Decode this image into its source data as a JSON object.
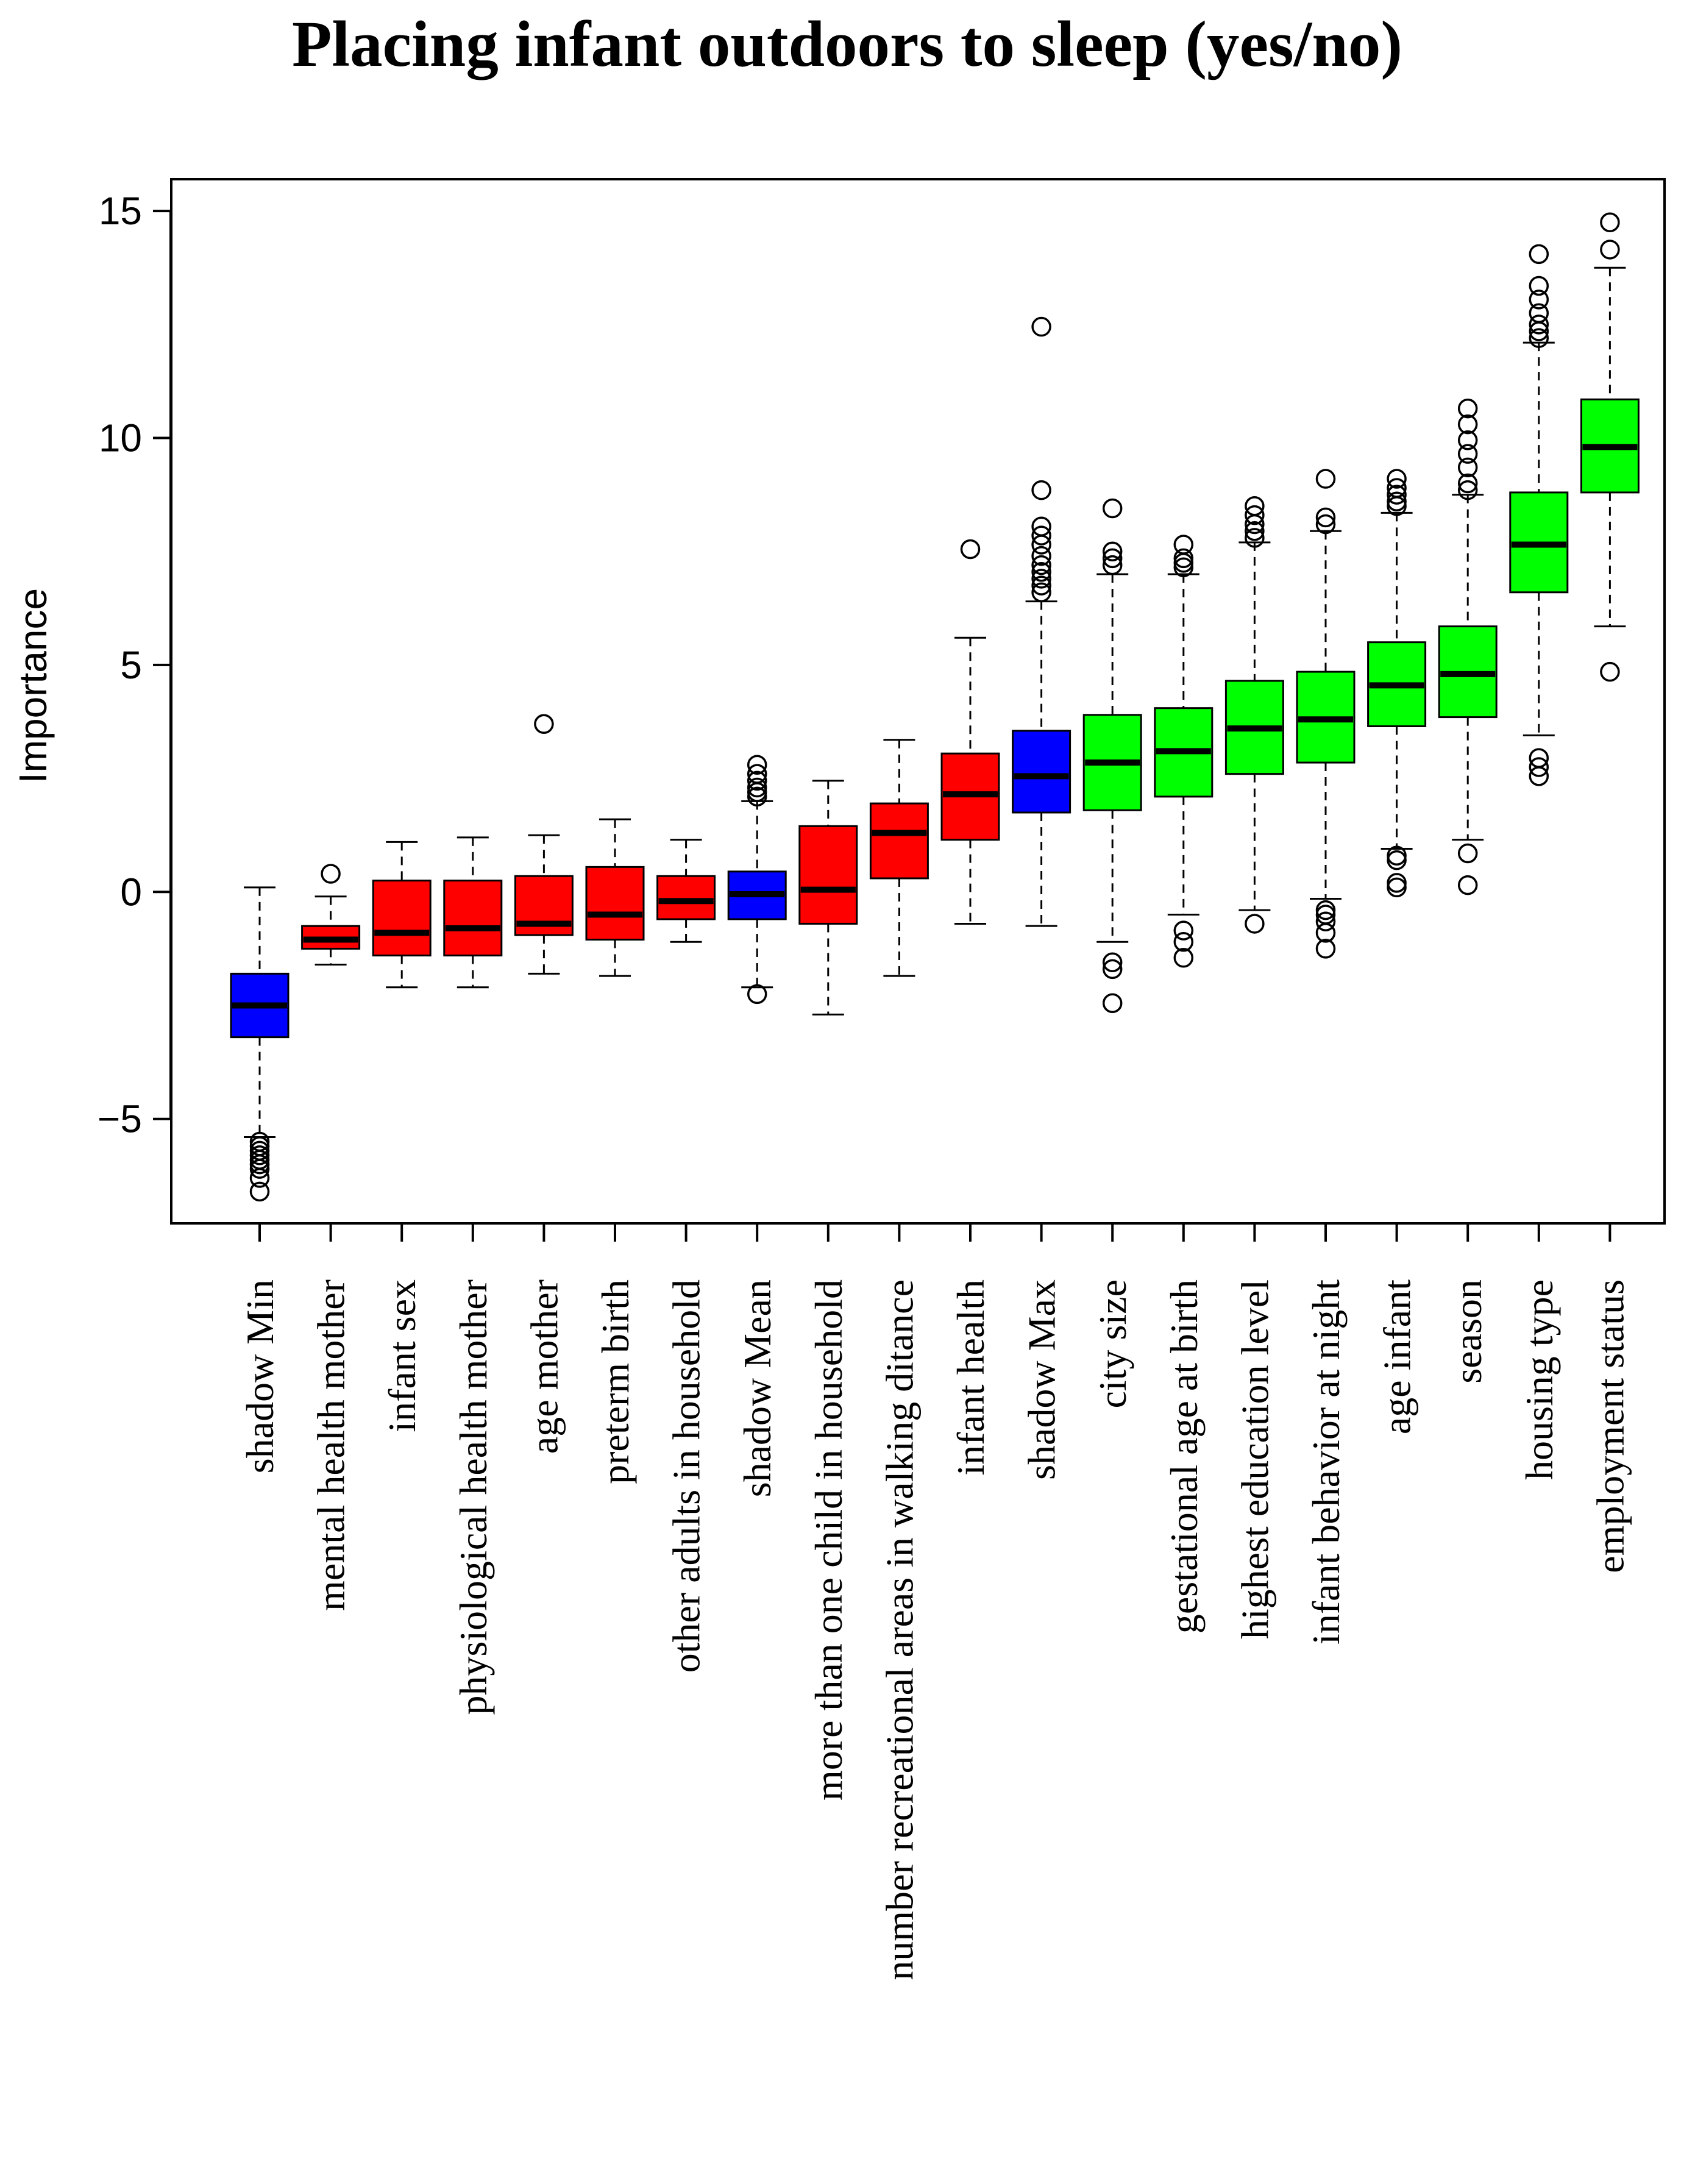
{
  "chart_data": {
    "type": "box",
    "title": "Placing infant outdoors to sleep (yes/no)",
    "xlabel": "",
    "ylabel": "Importance",
    "ylim": [
      -7.3,
      15.7
    ],
    "yticks": [
      -5,
      0,
      5,
      10,
      15
    ],
    "ytick_labels": [
      "−5",
      "0",
      "5",
      "10",
      "15"
    ],
    "grid": false,
    "legend": "none",
    "colors": {
      "shadow": "#0000ff",
      "rejected": "#ff0000",
      "confirmed": "#00ff00",
      "median": "#000000",
      "outline": "#000000"
    },
    "categories": [
      "shadow Min",
      "mental health mother",
      "infant sex",
      "physiological health mother",
      "age mother",
      "preterm birth",
      "other adults in household",
      "shadow Mean",
      "more than one child in household",
      "number recreational areas in walking ditance",
      "infant health",
      "shadow Max",
      "city size",
      "gestational age at birth",
      "highest education level",
      "infant behavior at night",
      "age infant",
      "season",
      "housing type",
      "employment status"
    ],
    "boxes": [
      {
        "label": "shadow Min",
        "group": "shadow",
        "whisker_low": -5.4,
        "q1": -3.2,
        "median": -2.5,
        "q3": -1.8,
        "whisker_high": 0.1,
        "outliers": [
          -5.5,
          -5.6,
          -5.7,
          -5.8,
          -5.9,
          -6.0,
          -6.1,
          -6.3,
          -6.6
        ]
      },
      {
        "label": "mental health mother",
        "group": "rejected",
        "whisker_low": -1.6,
        "q1": -1.25,
        "median": -1.05,
        "q3": -0.75,
        "whisker_high": -0.1,
        "outliers": [
          0.4
        ]
      },
      {
        "label": "infant sex",
        "group": "rejected",
        "whisker_low": -2.1,
        "q1": -1.4,
        "median": -0.9,
        "q3": 0.25,
        "whisker_high": 1.1,
        "outliers": []
      },
      {
        "label": "physiological health mother",
        "group": "rejected",
        "whisker_low": -2.1,
        "q1": -1.4,
        "median": -0.8,
        "q3": 0.25,
        "whisker_high": 1.2,
        "outliers": []
      },
      {
        "label": "age mother",
        "group": "rejected",
        "whisker_low": -1.8,
        "q1": -0.95,
        "median": -0.7,
        "q3": 0.35,
        "whisker_high": 1.25,
        "outliers": [
          3.7
        ]
      },
      {
        "label": "preterm birth",
        "group": "rejected",
        "whisker_low": -1.85,
        "q1": -1.05,
        "median": -0.5,
        "q3": 0.55,
        "whisker_high": 1.6,
        "outliers": []
      },
      {
        "label": "other adults in household",
        "group": "rejected",
        "whisker_low": -1.1,
        "q1": -0.6,
        "median": -0.2,
        "q3": 0.35,
        "whisker_high": 1.15,
        "outliers": []
      },
      {
        "label": "shadow Mean",
        "group": "shadow",
        "whisker_low": -2.1,
        "q1": -0.6,
        "median": -0.05,
        "q3": 0.45,
        "whisker_high": 2.0,
        "outliers": [
          2.1,
          2.2,
          2.3,
          2.45,
          2.6,
          2.8,
          -2.25
        ]
      },
      {
        "label": "more than one child in household",
        "group": "rejected",
        "whisker_low": -2.7,
        "q1": -0.7,
        "median": 0.05,
        "q3": 1.45,
        "whisker_high": 2.45,
        "outliers": []
      },
      {
        "label": "number recreational areas in walking ditance",
        "group": "rejected",
        "whisker_low": -1.85,
        "q1": 0.3,
        "median": 1.3,
        "q3": 1.95,
        "whisker_high": 3.35,
        "outliers": []
      },
      {
        "label": "infant health",
        "group": "rejected",
        "whisker_low": -0.7,
        "q1": 1.15,
        "median": 2.15,
        "q3": 3.05,
        "whisker_high": 5.6,
        "outliers": [
          7.55
        ]
      },
      {
        "label": "shadow Max",
        "group": "shadow",
        "whisker_low": -0.75,
        "q1": 1.75,
        "median": 2.55,
        "q3": 3.55,
        "whisker_high": 6.4,
        "outliers": [
          6.6,
          6.75,
          6.9,
          7.05,
          7.2,
          7.4,
          7.65,
          7.85,
          8.05,
          8.85,
          12.45
        ]
      },
      {
        "label": "city size",
        "group": "confirmed",
        "whisker_low": -1.1,
        "q1": 1.8,
        "median": 2.85,
        "q3": 3.9,
        "whisker_high": 7.0,
        "outliers": [
          7.2,
          7.35,
          7.5,
          8.45,
          -1.55,
          -1.7,
          -2.45
        ]
      },
      {
        "label": "gestational age at birth",
        "group": "confirmed",
        "whisker_low": -0.5,
        "q1": 2.1,
        "median": 3.1,
        "q3": 4.05,
        "whisker_high": 7.0,
        "outliers": [
          7.15,
          7.25,
          7.35,
          7.65,
          -0.85,
          -1.1,
          -1.45
        ]
      },
      {
        "label": "highest education level",
        "group": "confirmed",
        "whisker_low": -0.4,
        "q1": 2.6,
        "median": 3.6,
        "q3": 4.65,
        "whisker_high": 7.7,
        "outliers": [
          7.8,
          7.95,
          8.1,
          8.3,
          8.5,
          -0.7
        ]
      },
      {
        "label": "infant behavior at night",
        "group": "confirmed",
        "whisker_low": -0.15,
        "q1": 2.85,
        "median": 3.8,
        "q3": 4.85,
        "whisker_high": 7.95,
        "outliers": [
          8.1,
          8.25,
          9.1,
          -0.4,
          -0.5,
          -0.65,
          -0.9,
          -1.25
        ]
      },
      {
        "label": "age infant",
        "group": "confirmed",
        "whisker_low": 0.95,
        "q1": 3.65,
        "median": 4.55,
        "q3": 5.5,
        "whisker_high": 8.35,
        "outliers": [
          8.5,
          8.6,
          8.75,
          8.9,
          9.1,
          0.8,
          0.7,
          0.2,
          0.1
        ]
      },
      {
        "label": "season",
        "group": "confirmed",
        "whisker_low": 1.15,
        "q1": 3.85,
        "median": 4.8,
        "q3": 5.85,
        "whisker_high": 8.75,
        "outliers": [
          8.85,
          9.0,
          9.35,
          9.65,
          9.95,
          10.3,
          10.65,
          0.85,
          0.15
        ]
      },
      {
        "label": "housing type",
        "group": "confirmed",
        "whisker_low": 3.45,
        "q1": 6.6,
        "median": 7.65,
        "q3": 8.8,
        "whisker_high": 12.1,
        "outliers": [
          12.2,
          12.35,
          12.5,
          12.75,
          13.05,
          13.35,
          14.05,
          2.95,
          2.75,
          2.55
        ]
      },
      {
        "label": "employment status",
        "group": "confirmed",
        "whisker_low": 5.85,
        "q1": 8.8,
        "median": 9.8,
        "q3": 10.85,
        "whisker_high": 13.75,
        "outliers": [
          14.15,
          14.75,
          4.85
        ]
      }
    ]
  }
}
